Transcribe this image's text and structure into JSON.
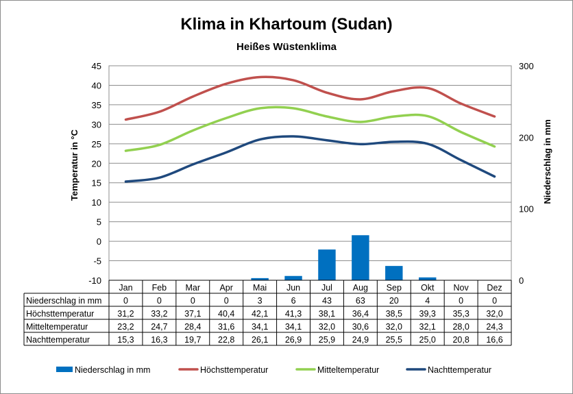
{
  "chart_data": {
    "type": "bar+line",
    "title": "Klima in Khartoum (Sudan)",
    "subtitle": "Heißes Wüstenklima",
    "ylabel_left": "Temperatur in °C",
    "ylabel_right": "Niederschlag in mm",
    "ylim_left": [
      -10,
      45
    ],
    "ylim_right": [
      0,
      300
    ],
    "yticks_left": [
      45,
      40,
      35,
      30,
      25,
      20,
      15,
      10,
      5,
      0,
      -5,
      -10
    ],
    "yticks_right": [
      300,
      200,
      100,
      0
    ],
    "categories": [
      "Jan",
      "Feb",
      "Mar",
      "Apr",
      "Mai",
      "Jun",
      "Jul",
      "Aug",
      "Sep",
      "Okt",
      "Nov",
      "Dez"
    ],
    "grid": true,
    "legend_position": "bottom",
    "series": [
      {
        "name": "Niederschlag in mm",
        "type": "bar",
        "axis": "right",
        "color": "#0070c0",
        "values": [
          0,
          0,
          0,
          0,
          3,
          6,
          43,
          63,
          20,
          4,
          0,
          0
        ],
        "labels": [
          "0",
          "0",
          "0",
          "0",
          "3",
          "6",
          "43",
          "63",
          "20",
          "4",
          "0",
          "0"
        ]
      },
      {
        "name": "Höchsttemperatur",
        "type": "line",
        "axis": "left",
        "color": "#c0504d",
        "values": [
          31.2,
          33.2,
          37.1,
          40.4,
          42.1,
          41.3,
          38.1,
          36.4,
          38.5,
          39.3,
          35.3,
          32.0
        ],
        "labels": [
          "31,2",
          "33,2",
          "37,1",
          "40,4",
          "42,1",
          "41,3",
          "38,1",
          "36,4",
          "38,5",
          "39,3",
          "35,3",
          "32,0"
        ]
      },
      {
        "name": "Mitteltemperatur",
        "type": "line",
        "axis": "left",
        "color": "#92d050",
        "values": [
          23.2,
          24.7,
          28.4,
          31.6,
          34.1,
          34.1,
          32.0,
          30.6,
          32.0,
          32.1,
          28.0,
          24.3
        ],
        "labels": [
          "23,2",
          "24,7",
          "28,4",
          "31,6",
          "34,1",
          "34,1",
          "32,0",
          "30,6",
          "32,0",
          "32,1",
          "28,0",
          "24,3"
        ]
      },
      {
        "name": "Nachttemperatur",
        "type": "line",
        "axis": "left",
        "color": "#1f497d",
        "values": [
          15.3,
          16.3,
          19.7,
          22.8,
          26.1,
          26.9,
          25.9,
          24.9,
          25.5,
          25.0,
          20.8,
          16.6
        ],
        "labels": [
          "15,3",
          "16,3",
          "19,7",
          "22,8",
          "26,1",
          "26,9",
          "25,9",
          "24,9",
          "25,5",
          "25,0",
          "20,8",
          "16,6"
        ]
      }
    ]
  }
}
